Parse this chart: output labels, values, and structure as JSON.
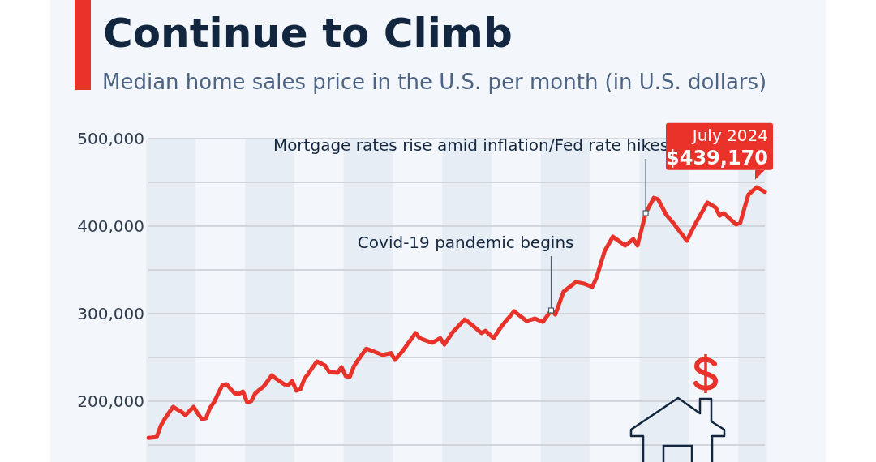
{
  "chart_data": {
    "type": "line",
    "title": "Continue to Climb",
    "subtitle": "Median home sales price in the U.S. per month (in U.S. dollars)",
    "categories": [
      null,
      null,
      null,
      null,
      null,
      null,
      null,
      null,
      null,
      null,
      null,
      null,
      null,
      null,
      null,
      null,
      null,
      null,
      null,
      null,
      null,
      null,
      null,
      null,
      null,
      null,
      null,
      null,
      null,
      null,
      null,
      null,
      null,
      null,
      null,
      null,
      null,
      null,
      null,
      null,
      null,
      null,
      null,
      null,
      null,
      null,
      null,
      null,
      null,
      null,
      null,
      null,
      null,
      null,
      null,
      null,
      null,
      null,
      null,
      null,
      null,
      null,
      null,
      null,
      null,
      null,
      null,
      null,
      null,
      null,
      null,
      null,
      null,
      null,
      null,
      null,
      null,
      null,
      null,
      null,
      null,
      null,
      null,
      null,
      null,
      null,
      null,
      null,
      null,
      null,
      null,
      null,
      null,
      null,
      null,
      null,
      null,
      null,
      null,
      null,
      null,
      null,
      null,
      null,
      null,
      null,
      null,
      null,
      null,
      null,
      null,
      null,
      null,
      null,
      null,
      null,
      null,
      null,
      null,
      null,
      null,
      null,
      null,
      null,
      null,
      null,
      null,
      null,
      null,
      null,
      null,
      null,
      null,
      null,
      null,
      null,
      null,
      null,
      null,
      null,
      null,
      null,
      null,
      null,
      null,
      null,
      null,
      null,
      null,
      null,
      null
    ],
    "series": [
      {
        "color": "#e8322a",
        "values": [
          158000,
          158500,
          159000,
          172000,
          180000,
          187000,
          193500,
          190700,
          188000,
          184000,
          189000,
          193500,
          186000,
          179600,
          180500,
          192600,
          199000,
          209000,
          218500,
          219400,
          214000,
          209000,
          208300,
          211100,
          199000,
          200000,
          209000,
          213000,
          216700,
          223000,
          229600,
          226000,
          222700,
          219400,
          218500,
          223000,
          212000,
          213900,
          226000,
          232000,
          239000,
          245400,
          243000,
          240700,
          233300,
          232800,
          232400,
          238900,
          228700,
          227800,
          240000,
          247000,
          253500,
          260000,
          258300,
          256500,
          254600,
          252800,
          253900,
          255000,
          247200,
          252700,
          258300,
          264800,
          271300,
          277800,
          272200,
          270300,
          268500,
          266700,
          269400,
          272200,
          264800,
          271700,
          278700,
          283600,
          288600,
          293500,
          289800,
          286100,
          282000,
          277800,
          280500,
          276300,
          272200,
          279200,
          286100,
          291700,
          297200,
          302800,
          299000,
          295300,
          291700,
          293000,
          294400,
          292500,
          290700,
          297200,
          303700,
          299000,
          312000,
          325000,
          328700,
          332400,
          336100,
          335200,
          334300,
          332400,
          330600,
          340700,
          356000,
          371300,
          379600,
          388000,
          384600,
          381200,
          377800,
          381500,
          385200,
          377800,
          396300,
          414800,
          423600,
          432400,
          430600,
          421800,
          413000,
          407400,
          401900,
          395700,
          389500,
          383300,
          392600,
          401900,
          410200,
          418500,
          426900,
          424100,
          421300,
          412000,
          414800,
          410500,
          406200,
          401900,
          403700,
          420000,
          436100,
          440200,
          444400,
          441800,
          439170
        ]
      }
    ],
    "ylim": [
      130000,
      500000
    ],
    "yticks": [
      {
        "value": 150000,
        "label": null
      },
      {
        "value": 200000,
        "label": "200,000"
      },
      {
        "value": 250000,
        "label": null
      },
      {
        "value": 300000,
        "label": "300,000"
      },
      {
        "value": 350000,
        "label": null
      },
      {
        "value": 400000,
        "label": "400,000"
      },
      {
        "value": 450000,
        "label": null
      },
      {
        "value": 500000,
        "label": "500,000"
      }
    ],
    "tick_labels": "y",
    "grid": "y",
    "line_style": "solid",
    "annotations": [
      "Covid-19 pandemic begins",
      "Mortgage rates rise amid inflation/Fed rate hikes",
      "July 2024",
      "$439,170"
    ]
  }
}
